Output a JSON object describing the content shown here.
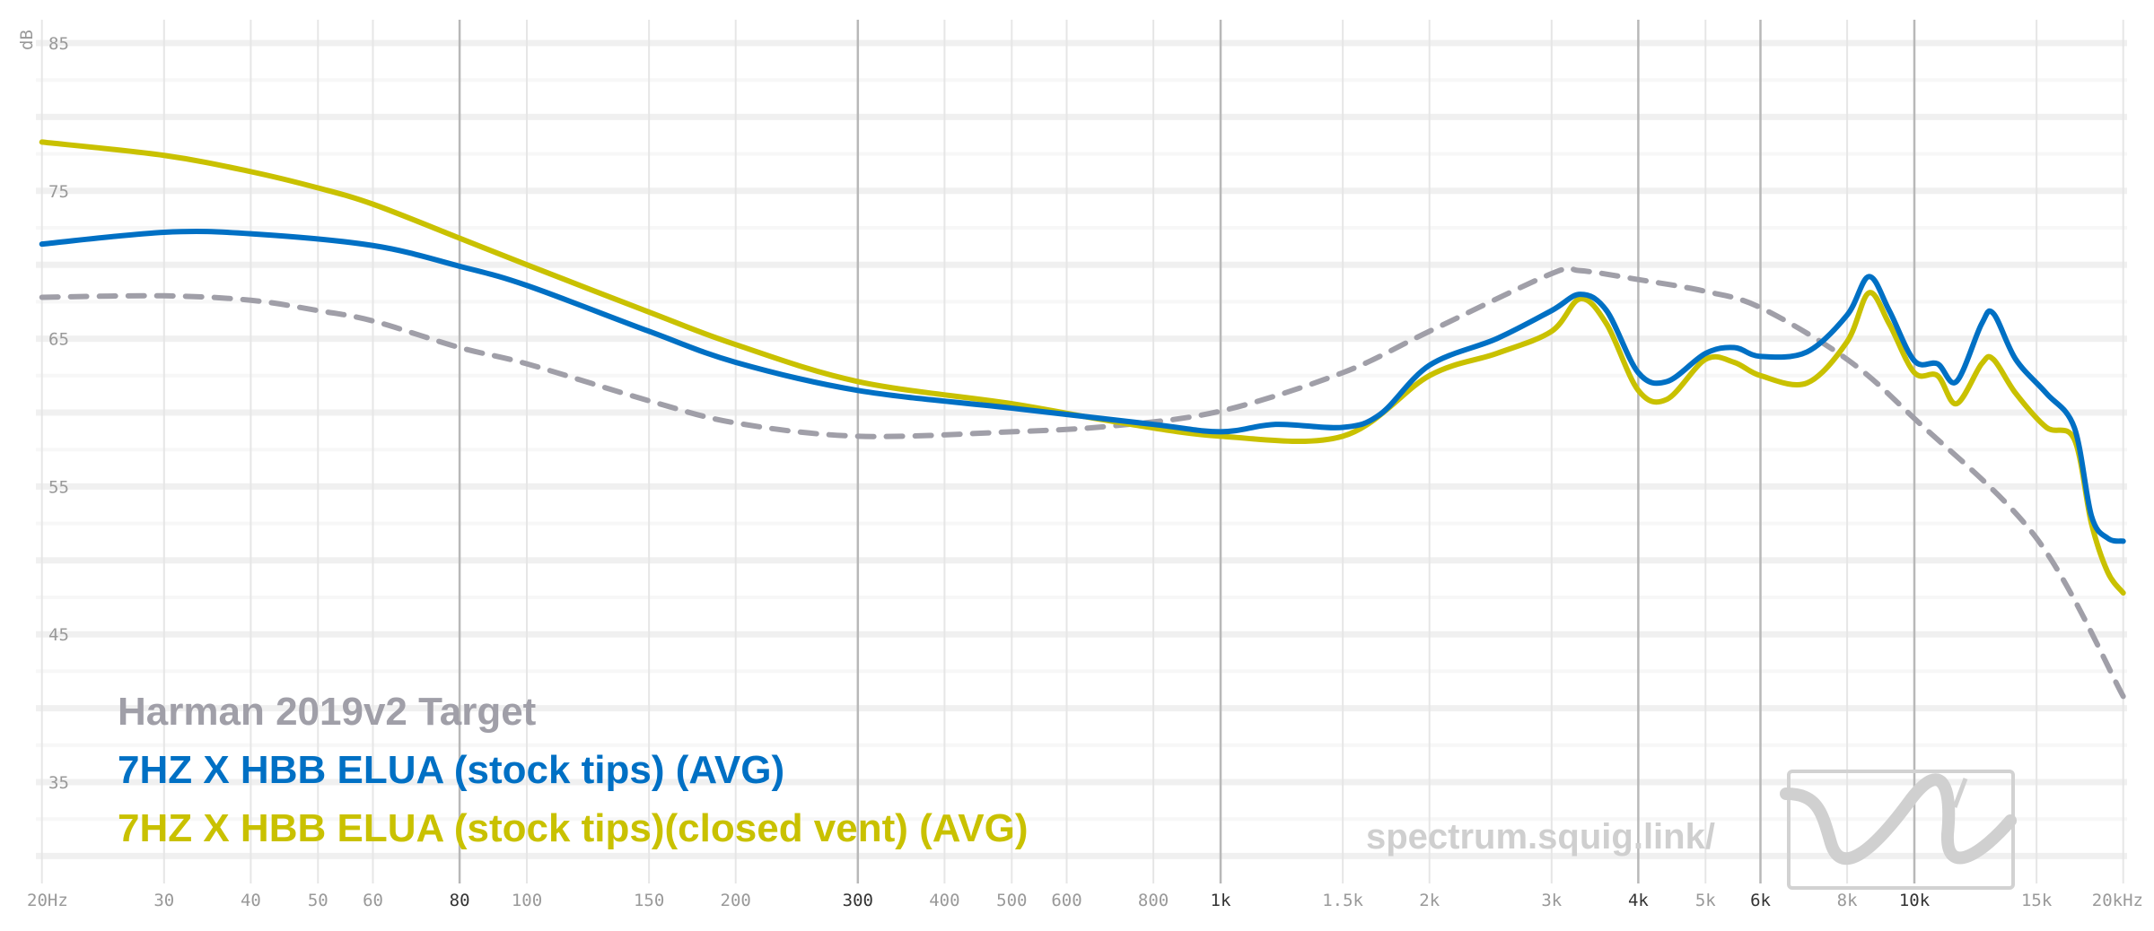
{
  "chart_data": {
    "type": "line",
    "title": "",
    "xlabel": "",
    "ylabel": "dB",
    "xscale": "log",
    "xlim": [
      20,
      20000
    ],
    "ylim": [
      30,
      87
    ],
    "grid": true,
    "legend_placement": "bottom-left",
    "y_ticks": [
      85,
      75,
      65,
      55,
      45,
      35
    ],
    "x_ticks": [
      {
        "f": 20,
        "label": "20Hz",
        "major": false
      },
      {
        "f": 30,
        "label": "30",
        "major": false
      },
      {
        "f": 40,
        "label": "40",
        "major": false
      },
      {
        "f": 50,
        "label": "50",
        "major": false
      },
      {
        "f": 60,
        "label": "60",
        "major": false
      },
      {
        "f": 80,
        "label": "80",
        "major": true
      },
      {
        "f": 100,
        "label": "100",
        "major": false
      },
      {
        "f": 150,
        "label": "150",
        "major": false
      },
      {
        "f": 200,
        "label": "200",
        "major": false
      },
      {
        "f": 300,
        "label": "300",
        "major": true
      },
      {
        "f": 400,
        "label": "400",
        "major": false
      },
      {
        "f": 500,
        "label": "500",
        "major": false
      },
      {
        "f": 600,
        "label": "600",
        "major": false
      },
      {
        "f": 800,
        "label": "800",
        "major": false
      },
      {
        "f": 1000,
        "label": "1k",
        "major": true
      },
      {
        "f": 1500,
        "label": "1.5k",
        "major": false
      },
      {
        "f": 2000,
        "label": "2k",
        "major": false
      },
      {
        "f": 3000,
        "label": "3k",
        "major": false
      },
      {
        "f": 4000,
        "label": "4k",
        "major": true
      },
      {
        "f": 5000,
        "label": "5k",
        "major": false
      },
      {
        "f": 6000,
        "label": "6k",
        "major": true
      },
      {
        "f": 8000,
        "label": "8k",
        "major": false
      },
      {
        "f": 10000,
        "label": "10k",
        "major": true
      },
      {
        "f": 15000,
        "label": "15k",
        "major": false
      },
      {
        "f": 20000,
        "label": "20kHz",
        "major": false
      }
    ],
    "series": [
      {
        "name": "Harman 2019v2 Target",
        "color": "#a09fa8",
        "dashed": true,
        "x": [
          20,
          30,
          40,
          50,
          60,
          80,
          100,
          150,
          200,
          300,
          500,
          700,
          1000,
          1500,
          2000,
          3000,
          3300,
          4000,
          5000,
          6000,
          8000,
          10000,
          15000,
          20000
        ],
        "y": [
          67.8,
          67.9,
          67.6,
          66.9,
          66.2,
          64.4,
          63.3,
          60.8,
          59.3,
          58.4,
          58.7,
          59.1,
          60.1,
          62.7,
          65.5,
          69.4,
          69.6,
          69.0,
          68.2,
          67.1,
          63.6,
          59.6,
          51.5,
          40.8
        ]
      },
      {
        "name": "7HZ X HBB ELUA (stock tips) (AVG)",
        "color": "#0070c4",
        "dashed": false,
        "x": [
          20,
          30,
          40,
          60,
          80,
          100,
          150,
          200,
          300,
          500,
          800,
          1000,
          1200,
          1500,
          1700,
          2000,
          2500,
          3000,
          3300,
          3600,
          4000,
          4400,
          5000,
          5500,
          6000,
          7000,
          8000,
          8600,
          9200,
          10000,
          10800,
          11500,
          12500,
          13000,
          14000,
          15500,
          17000,
          18000,
          19000,
          20000
        ],
        "y": [
          71.4,
          72.2,
          72.1,
          71.3,
          69.9,
          68.6,
          65.5,
          63.4,
          61.5,
          60.3,
          59.2,
          58.7,
          59.2,
          59.0,
          59.9,
          63.2,
          65.0,
          66.9,
          68.0,
          66.9,
          62.7,
          62.1,
          64.0,
          64.4,
          63.8,
          64.1,
          66.6,
          69.2,
          66.9,
          63.5,
          63.3,
          62.1,
          66.0,
          66.7,
          63.6,
          61.3,
          59.0,
          53.0,
          51.5,
          51.3
        ]
      },
      {
        "name": "7HZ X HBB ELUA (stock tips)(closed vent) (AVG)",
        "color": "#c9c100",
        "dashed": false,
        "x": [
          20,
          30,
          40,
          50,
          60,
          80,
          100,
          150,
          200,
          300,
          500,
          700,
          1000,
          1500,
          2000,
          2500,
          3000,
          3300,
          3600,
          4000,
          4400,
          5000,
          5500,
          6000,
          7000,
          8000,
          8600,
          9200,
          10000,
          10800,
          11500,
          12500,
          13000,
          14000,
          15500,
          17000,
          18000,
          19000,
          20000
        ],
        "y": [
          78.3,
          77.4,
          76.3,
          75.2,
          74.1,
          71.8,
          70.0,
          66.8,
          64.6,
          62.1,
          60.6,
          59.4,
          58.4,
          58.4,
          62.5,
          64.0,
          65.5,
          67.7,
          66.0,
          61.5,
          60.9,
          63.6,
          63.4,
          62.5,
          62.0,
          64.8,
          68.1,
          66.0,
          62.7,
          62.5,
          60.6,
          63.3,
          63.6,
          61.3,
          59.0,
          58.2,
          52.5,
          49.2,
          47.8
        ]
      }
    ],
    "watermark": "spectrum.squig.link/"
  }
}
